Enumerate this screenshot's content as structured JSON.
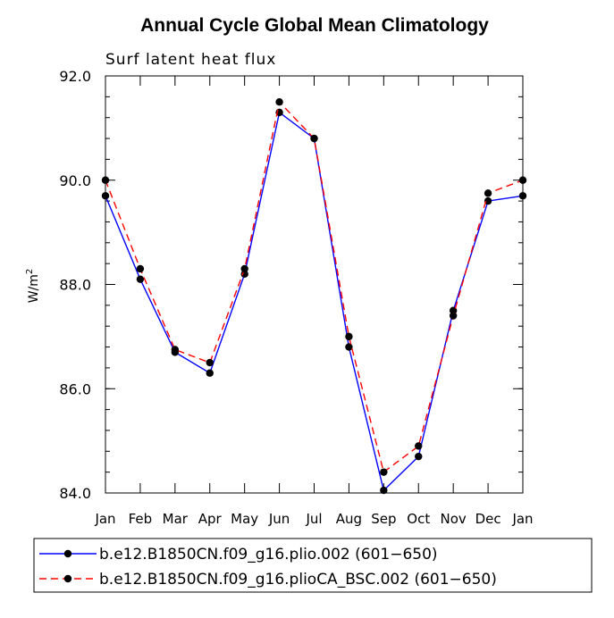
{
  "chart_data": {
    "type": "line",
    "title": "Annual Cycle Global Mean Climatology",
    "subtitle": "Surf latent heat flux",
    "ylabel": "W/m",
    "ylabel_sup": "2",
    "xlabel": "",
    "ylim": [
      84.0,
      92.0
    ],
    "yticks": [
      "84.0",
      "86.0",
      "88.0",
      "90.0",
      "92.0"
    ],
    "ytick_values": [
      84.0,
      86.0,
      88.0,
      90.0,
      92.0
    ],
    "yminor_step": 0.4,
    "categories": [
      "Jan",
      "Feb",
      "Mar",
      "Apr",
      "May",
      "Jun",
      "Jul",
      "Aug",
      "Sep",
      "Oct",
      "Nov",
      "Dec",
      "Jan"
    ],
    "grid": false,
    "legend_position": "bottom",
    "series": [
      {
        "name": "b.e12.B1850CN.f09_g16.plio.002 (601-650)",
        "legend_label": "b.e12.B1850CN.f09_g16.plio.002 (601−650)",
        "color": "#0000ff",
        "line_style": "solid",
        "values": [
          89.7,
          88.1,
          86.7,
          86.3,
          88.2,
          91.3,
          90.8,
          86.8,
          84.05,
          84.7,
          87.5,
          89.6,
          89.7
        ]
      },
      {
        "name": "b.e12.B1850CN.f09_g16.plioCA_BSC.002 (601-650)",
        "legend_label": "b.e12.B1850CN.f09_g16.plioCA_BSC.002 (601−650)",
        "color": "#ff0000",
        "line_style": "dashed",
        "values": [
          90.0,
          88.3,
          86.75,
          86.5,
          88.3,
          91.5,
          90.8,
          87.0,
          84.4,
          84.9,
          87.4,
          89.75,
          90.0
        ]
      }
    ]
  }
}
